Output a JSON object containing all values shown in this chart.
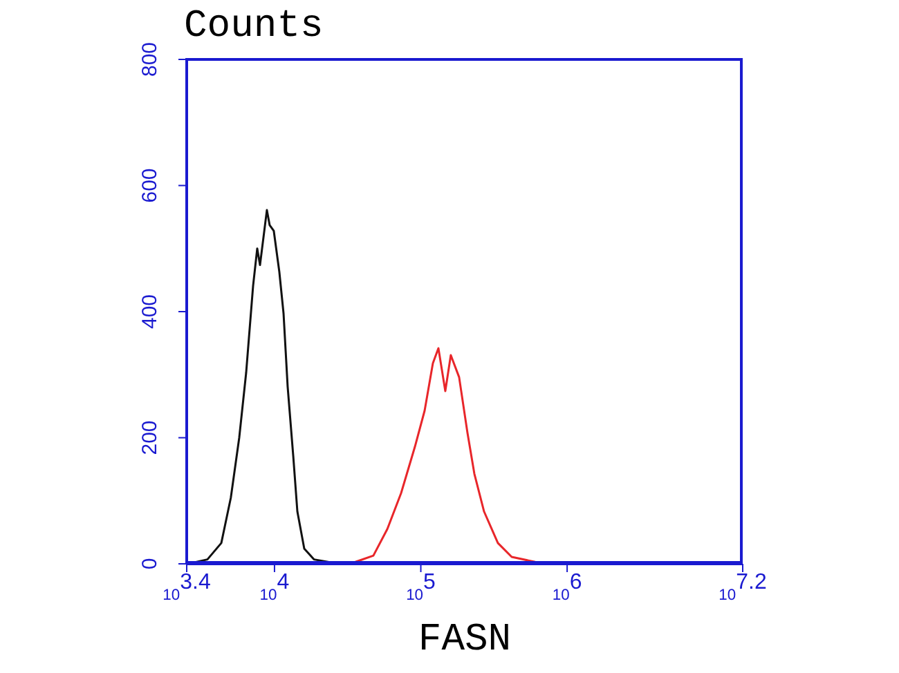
{
  "chart_data": {
    "type": "line",
    "ylabel": "Counts",
    "xlabel": "FASN",
    "log": "x",
    "marker": "none",
    "line_style": "solid",
    "xlim": [
      2512,
      15849000
    ],
    "xticks": [
      {
        "value": 2512,
        "label": "10$^{3.4}$"
      },
      {
        "value": 10000,
        "label": "10$^{4}$"
      },
      {
        "value": 100000,
        "label": "10$^{5}$"
      },
      {
        "value": 1000000,
        "label": "10$^{6}$"
      },
      {
        "value": 15849000,
        "label": "10$^{7.2}$"
      }
    ],
    "ylim": [
      0,
      800
    ],
    "yticks": [
      0,
      200,
      400,
      600,
      800
    ],
    "series": [
      {
        "color": "#111111",
        "x": [
          2800,
          3480,
          4330,
          5030,
          5740,
          6400,
          7140,
          7620,
          7960,
          8870,
          9270,
          9890,
          10790,
          11530,
          12300,
          13430,
          14330,
          15970,
          18600,
          24700
        ],
        "values": [
          2,
          7,
          33,
          105,
          200,
          303,
          441,
          500,
          474,
          561,
          537,
          528,
          463,
          397,
          281,
          171,
          83,
          24,
          7,
          2
        ]
      },
      {
        "color": "#e8262a",
        "x": [
          35700,
          47400,
          59000,
          73300,
          91200,
          106200,
          120900,
          131900,
          147000,
          160300,
          182700,
          208300,
          232200,
          270500,
          336300,
          418000,
          605000
        ],
        "values": [
          3,
          13,
          55,
          112,
          186,
          243,
          318,
          342,
          274,
          331,
          296,
          208,
          143,
          83,
          33,
          11,
          3
        ]
      }
    ]
  }
}
